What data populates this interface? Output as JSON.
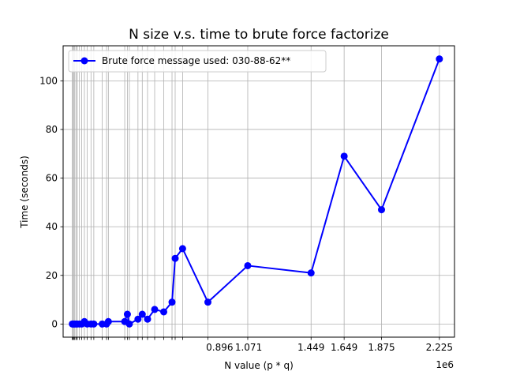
{
  "chart_data": {
    "type": "line",
    "title": "N size v.s. time to brute force factorize",
    "xlabel": "N value (p * q)",
    "ylabel": "Time (seconds)",
    "x_offset_label": "1e6",
    "x_scale": 1000000,
    "xlim": [
      -0.0506,
      2.3164
    ],
    "ylim": [
      -5.4,
      114.4
    ],
    "grid": true,
    "legend_position": "upper left",
    "yticks": [
      0,
      20,
      40,
      60,
      80,
      100
    ],
    "xticks": [
      {
        "value": 0.896,
        "label": "0.896"
      },
      {
        "value": 1.071,
        "label": "1.071"
      },
      {
        "value": 1.449,
        "label": "1.449"
      },
      {
        "value": 1.649,
        "label": "1.649"
      },
      {
        "value": 1.875,
        "label": "1.875"
      },
      {
        "value": 2.225,
        "label": "2.225"
      }
    ],
    "series": [
      {
        "name": "Brute force message used: 030-88-62**",
        "color": "#0000ff",
        "x": [
          0.005,
          0.01,
          0.015,
          0.02,
          0.028,
          0.035,
          0.048,
          0.062,
          0.078,
          0.095,
          0.118,
          0.135,
          0.186,
          0.212,
          0.223,
          0.322,
          0.338,
          0.35,
          0.402,
          0.428,
          0.46,
          0.503,
          0.558,
          0.608,
          0.627,
          0.672,
          0.825,
          1.066,
          1.449,
          1.649,
          1.875,
          2.225
        ],
        "y": [
          0,
          0,
          0,
          0,
          0,
          0,
          0,
          0,
          1,
          0,
          0,
          0,
          0,
          0,
          1,
          1,
          4,
          0,
          2,
          4,
          2,
          6,
          5,
          9,
          27,
          31,
          9,
          24,
          21,
          69,
          47,
          109
        ]
      }
    ]
  }
}
